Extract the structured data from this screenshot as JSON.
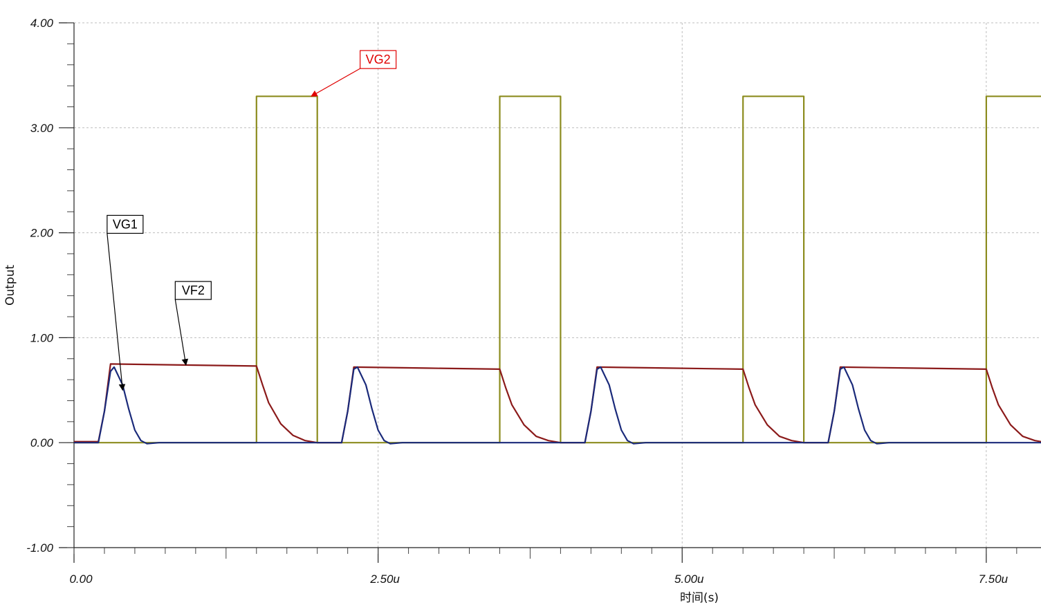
{
  "chart_data": {
    "type": "line",
    "xlabel": "时间(s)",
    "ylabel": "Output",
    "xlim": [
      0,
      7.95
    ],
    "ylim": [
      -1.0,
      4.0
    ],
    "x_unit": "µs",
    "grid": true,
    "x_tick_values": [
      0,
      2.5,
      5.0,
      7.5
    ],
    "x_tick_labels": [
      "0.00",
      "2.50u",
      "5.00u",
      "7.50u"
    ],
    "y_tick_values": [
      4.0,
      3.0,
      2.0,
      1.0,
      0.0,
      -1.0
    ],
    "y_tick_labels": [
      "4.00",
      "3.00",
      "2.00",
      "1.00",
      "0.00",
      "-1.00"
    ],
    "series": [
      {
        "name": "VG2",
        "color": "#8c8c1e",
        "points": [
          [
            0,
            0
          ],
          [
            1.5,
            0
          ],
          [
            1.5,
            3.3
          ],
          [
            2.0,
            3.3
          ],
          [
            2.0,
            0
          ],
          [
            3.5,
            0
          ],
          [
            3.5,
            3.3
          ],
          [
            4.0,
            3.3
          ],
          [
            4.0,
            0
          ],
          [
            5.5,
            0
          ],
          [
            5.5,
            3.3
          ],
          [
            6.0,
            3.3
          ],
          [
            6.0,
            0
          ],
          [
            7.5,
            0
          ],
          [
            7.5,
            3.3
          ],
          [
            7.95,
            3.3
          ]
        ]
      },
      {
        "name": "VF2",
        "color": "#8b1a1a",
        "points": [
          [
            0,
            0.01
          ],
          [
            0.2,
            0.01
          ],
          [
            0.25,
            0.3
          ],
          [
            0.3,
            0.75
          ],
          [
            0.9,
            0.74
          ],
          [
            1.5,
            0.73
          ],
          [
            1.55,
            0.55
          ],
          [
            1.6,
            0.38
          ],
          [
            1.7,
            0.18
          ],
          [
            1.8,
            0.07
          ],
          [
            1.9,
            0.02
          ],
          [
            2.0,
            0.0
          ],
          [
            2.2,
            0.0
          ],
          [
            2.25,
            0.3
          ],
          [
            2.3,
            0.72
          ],
          [
            2.9,
            0.71
          ],
          [
            3.5,
            0.7
          ],
          [
            3.55,
            0.52
          ],
          [
            3.6,
            0.36
          ],
          [
            3.7,
            0.17
          ],
          [
            3.8,
            0.06
          ],
          [
            3.9,
            0.02
          ],
          [
            4.0,
            0.0
          ],
          [
            4.2,
            0.0
          ],
          [
            4.25,
            0.3
          ],
          [
            4.3,
            0.72
          ],
          [
            4.9,
            0.71
          ],
          [
            5.5,
            0.7
          ],
          [
            5.55,
            0.52
          ],
          [
            5.6,
            0.36
          ],
          [
            5.7,
            0.17
          ],
          [
            5.8,
            0.06
          ],
          [
            5.9,
            0.02
          ],
          [
            6.0,
            0.0
          ],
          [
            6.2,
            0.0
          ],
          [
            6.25,
            0.3
          ],
          [
            6.3,
            0.72
          ],
          [
            6.9,
            0.71
          ],
          [
            7.5,
            0.7
          ],
          [
            7.55,
            0.52
          ],
          [
            7.6,
            0.36
          ],
          [
            7.7,
            0.17
          ],
          [
            7.8,
            0.06
          ],
          [
            7.9,
            0.02
          ],
          [
            7.95,
            0.01
          ]
        ]
      },
      {
        "name": "VG1",
        "color": "#1a2a7a",
        "points": [
          [
            0,
            0.0
          ],
          [
            0.2,
            0.0
          ],
          [
            0.25,
            0.3
          ],
          [
            0.3,
            0.68
          ],
          [
            0.33,
            0.72
          ],
          [
            0.4,
            0.55
          ],
          [
            0.45,
            0.32
          ],
          [
            0.5,
            0.12
          ],
          [
            0.55,
            0.02
          ],
          [
            0.6,
            -0.01
          ],
          [
            0.7,
            0.0
          ],
          [
            2.2,
            0.0
          ],
          [
            2.25,
            0.3
          ],
          [
            2.3,
            0.7
          ],
          [
            2.33,
            0.72
          ],
          [
            2.4,
            0.55
          ],
          [
            2.45,
            0.32
          ],
          [
            2.5,
            0.12
          ],
          [
            2.55,
            0.02
          ],
          [
            2.6,
            -0.01
          ],
          [
            2.7,
            0.0
          ],
          [
            4.2,
            0.0
          ],
          [
            4.25,
            0.3
          ],
          [
            4.3,
            0.7
          ],
          [
            4.33,
            0.72
          ],
          [
            4.4,
            0.55
          ],
          [
            4.45,
            0.32
          ],
          [
            4.5,
            0.12
          ],
          [
            4.55,
            0.02
          ],
          [
            4.6,
            -0.01
          ],
          [
            4.7,
            0.0
          ],
          [
            6.2,
            0.0
          ],
          [
            6.25,
            0.3
          ],
          [
            6.3,
            0.7
          ],
          [
            6.33,
            0.72
          ],
          [
            6.4,
            0.55
          ],
          [
            6.45,
            0.32
          ],
          [
            6.5,
            0.12
          ],
          [
            6.55,
            0.02
          ],
          [
            6.6,
            -0.01
          ],
          [
            6.7,
            0.0
          ],
          [
            7.95,
            0.0
          ]
        ]
      }
    ],
    "annotations": [
      {
        "text": "VG2",
        "color": "#e00000",
        "box_at": [
          2.5,
          3.65
        ],
        "arrow_to": [
          1.95,
          3.3
        ]
      },
      {
        "text": "VG1",
        "color": "#000000",
        "box_at": [
          0.42,
          2.08
        ],
        "arrow_to": [
          0.4,
          0.5
        ]
      },
      {
        "text": "VF2",
        "color": "#000000",
        "box_at": [
          0.98,
          1.45
        ],
        "arrow_to": [
          0.92,
          0.74
        ]
      }
    ]
  }
}
